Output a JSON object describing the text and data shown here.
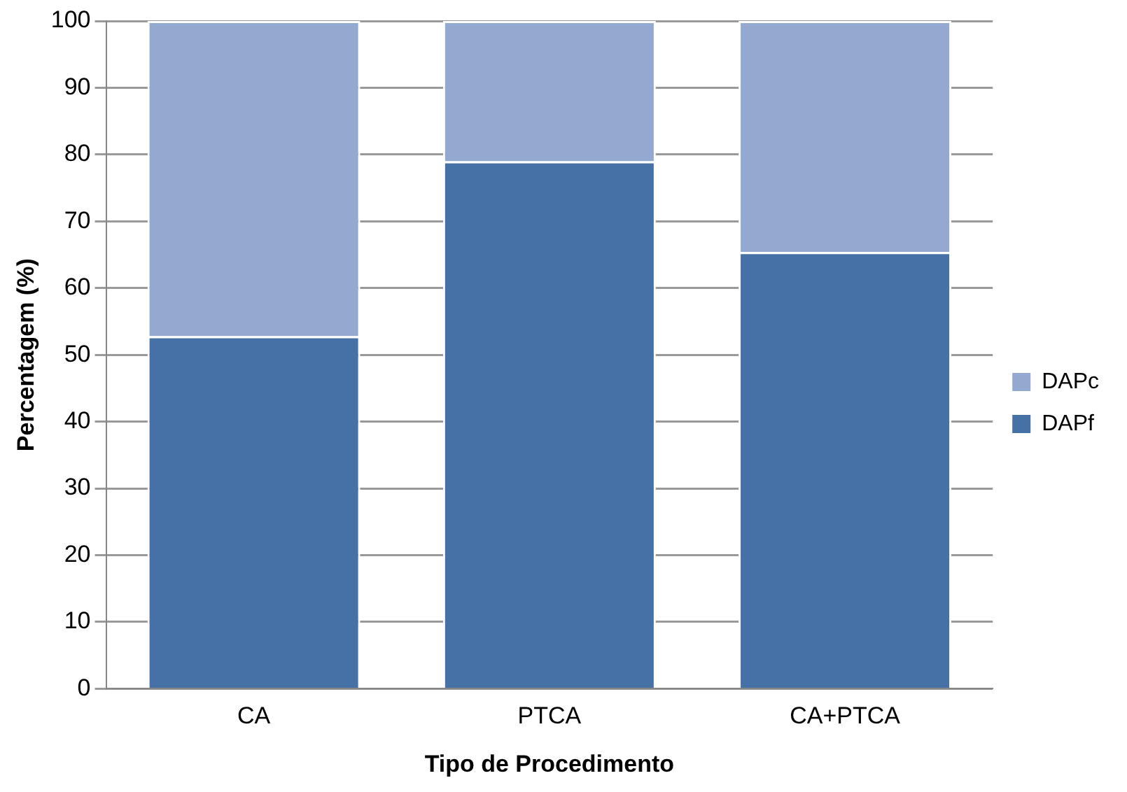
{
  "chart_data": {
    "type": "bar",
    "stacked": true,
    "xlabel": "Tipo de Procedimento",
    "ylabel": "Percentagem (%)",
    "categories": [
      "CA",
      "PTCA",
      "CA+PTCA"
    ],
    "series": [
      {
        "name": "DAPf",
        "color": "#4571a6",
        "values": [
          52.8,
          79,
          65.4
        ]
      },
      {
        "name": "DAPc",
        "color": "#94a9d0",
        "values": [
          47.2,
          21,
          34.6
        ]
      }
    ],
    "ylim": [
      0,
      100
    ],
    "yticks": [
      0,
      10,
      20,
      30,
      40,
      50,
      60,
      70,
      80,
      90,
      100
    ],
    "grid": "y",
    "legend": "right"
  }
}
